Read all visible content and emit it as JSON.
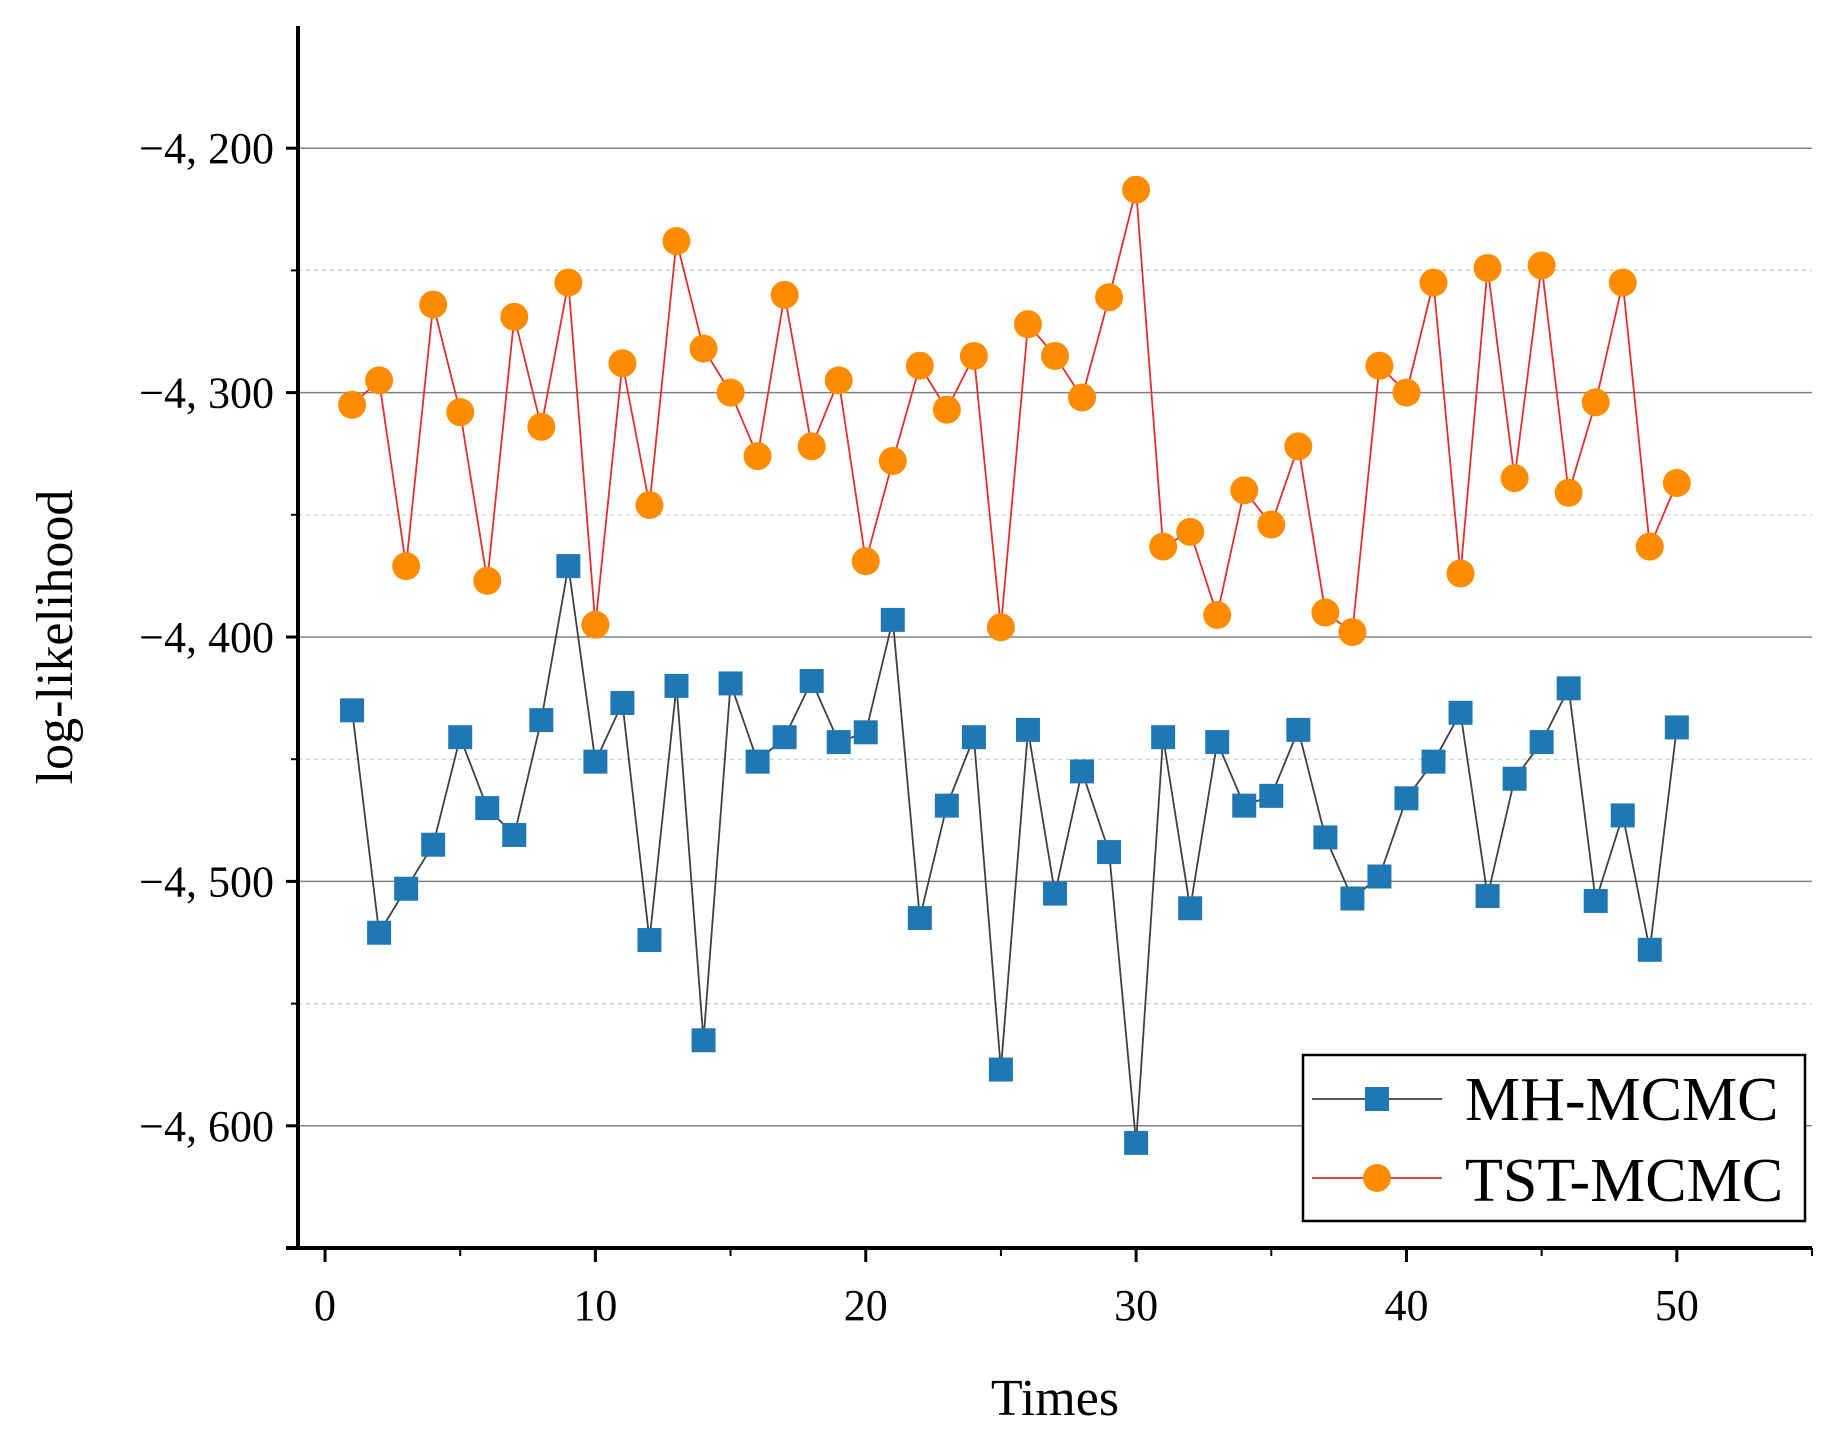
{
  "chart_data": {
    "type": "line",
    "xlabel": "Times",
    "ylabel": "log-likelihood",
    "xlim": [
      -1,
      55
    ],
    "ylim": [
      -4650,
      -4150
    ],
    "x_ticks": [
      0,
      10,
      20,
      30,
      40,
      50
    ],
    "x_tick_labels": [
      "0",
      "10",
      "20",
      "30",
      "40",
      "50"
    ],
    "y_ticks": [
      -4600,
      -4500,
      -4400,
      -4300,
      -4200
    ],
    "y_tick_labels": [
      "−4, 600",
      "−4, 500",
      "−4, 400",
      "−4, 300",
      "−4, 200"
    ],
    "y_minor_grid": [
      -4550,
      -4450,
      -4350,
      -4250
    ],
    "grid": true,
    "legend_position": "bottom-right",
    "x": [
      1,
      2,
      3,
      4,
      5,
      6,
      7,
      8,
      9,
      10,
      11,
      12,
      13,
      14,
      15,
      16,
      17,
      18,
      19,
      20,
      21,
      22,
      23,
      24,
      25,
      26,
      27,
      28,
      29,
      30,
      31,
      32,
      33,
      34,
      35,
      36,
      37,
      38,
      39,
      40,
      41,
      42,
      43,
      44,
      45,
      46,
      47,
      48,
      49,
      50
    ],
    "series": [
      {
        "name": "MH-MCMC",
        "line_color": "#404040",
        "marker_color": "#1f78b4",
        "marker": "square",
        "values": [
          -4430,
          -4521,
          -4503,
          -4485,
          -4441,
          -4470,
          -4481,
          -4434,
          -4371,
          -4451,
          -4427,
          -4524,
          -4420,
          -4565,
          -4419,
          -4451,
          -4441,
          -4418,
          -4443,
          -4439,
          -4393,
          -4515,
          -4469,
          -4441,
          -4577,
          -4438,
          -4505,
          -4455,
          -4488,
          -4607,
          -4441,
          -4511,
          -4443,
          -4469,
          -4465,
          -4438,
          -4482,
          -4507,
          -4498,
          -4466,
          -4451,
          -4431,
          -4506,
          -4458,
          -4443,
          -4421,
          -4508,
          -4473,
          -4528,
          -4437
        ]
      },
      {
        "name": "TST-MCMC",
        "line_color": "#e03030",
        "marker_color": "#ff8c00",
        "marker": "circle",
        "values": [
          -4305,
          -4295,
          -4371,
          -4264,
          -4308,
          -4377,
          -4269,
          -4314,
          -4255,
          -4395,
          -4288,
          -4346,
          -4238,
          -4282,
          -4300,
          -4326,
          -4260,
          -4322,
          -4295,
          -4369,
          -4328,
          -4289,
          -4307,
          -4285,
          -4396,
          -4272,
          -4285,
          -4302,
          -4261,
          -4217,
          -4363,
          -4357,
          -4391,
          -4340,
          -4354,
          -4322,
          -4390,
          -4398,
          -4289,
          -4300,
          -4255,
          -4374,
          -4249,
          -4335,
          -4248,
          -4341,
          -4304,
          -4255,
          -4363,
          -4337
        ]
      }
    ]
  }
}
